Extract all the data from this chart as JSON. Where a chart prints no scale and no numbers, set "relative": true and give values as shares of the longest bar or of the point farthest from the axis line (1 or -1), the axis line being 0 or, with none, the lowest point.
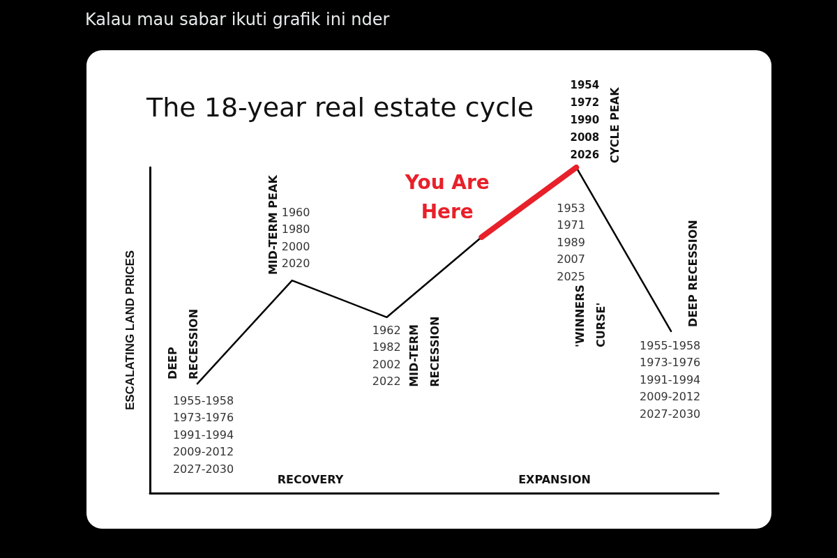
{
  "chart_data": {
    "type": "line",
    "title": "The 18-year real estate cycle",
    "subtitle": "Kalau mau sabar ikuti grafik ini nder",
    "ylabel": "ESCALATING LAND PRICES",
    "categories": [
      null,
      null,
      null,
      null,
      null,
      null
    ],
    "relative": true,
    "marker": "none",
    "line_style": "solid",
    "grid": false,
    "series": [
      {
        "color": "#000000",
        "values": [
          0.336,
          0.653,
          0.54,
          0.786,
          1,
          0.497
        ]
      },
      {
        "color": "#e8202a",
        "values": [
          null,
          null,
          null,
          0.786,
          1,
          null
        ]
      }
    ],
    "annotations": [
      "DEEP\nRECESSION",
      "1955-1958\n1973-1976\n1991-1994\n2009-2012\n2027-2030",
      "MID-TERM PEAK",
      "1960\n1980\n2000\n2020",
      "1962\n1982\n2002\n2022",
      "MID-TERM\nRECESSION",
      "You Are\nHere",
      "1954\n1972\n1990\n2008\n2026",
      "CYCLE PEAK",
      "1953\n1971\n1989\n2007\n2025",
      "'WINNERS\nCURSE'",
      "DEEP RECESSION",
      "1955-1958\n1973-1976\n1991-1994\n2009-2012\n2027-2030",
      "RECOVERY",
      "EXPANSION"
    ]
  }
}
